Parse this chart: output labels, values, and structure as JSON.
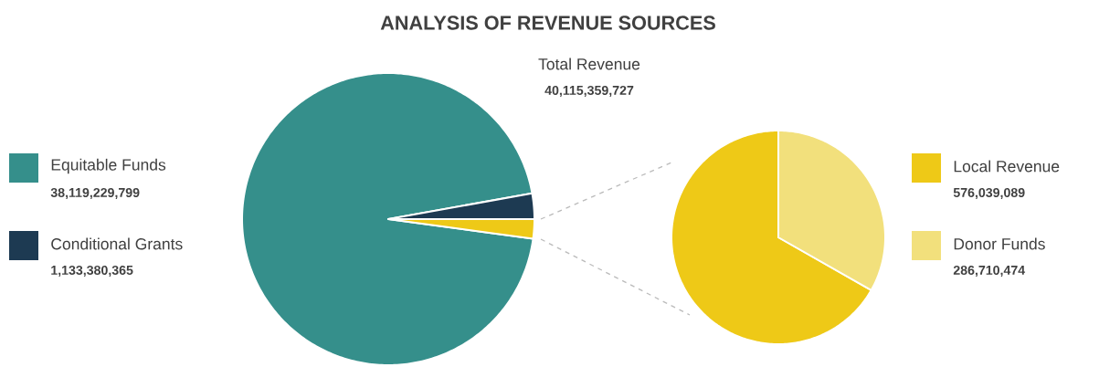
{
  "chart_data": [
    {
      "type": "pie",
      "title": "ANALYSIS OF REVENUE SOURCES",
      "annotations": [
        "Total Revenue",
        "40,115,359,727"
      ],
      "categories": [
        "Equitable Funds",
        "Conditional Grants",
        null
      ],
      "values": [
        38119229799,
        1133380365,
        862749563
      ],
      "colors": [
        "#358f8b",
        "#1d3a52",
        "#eec917"
      ],
      "value_labels": [
        "38,119,229,799",
        "1,133,380,365",
        null
      ],
      "legend": "left"
    },
    {
      "type": "pie",
      "categories": [
        "Local Revenue",
        "Donor Funds"
      ],
      "values": [
        576039089,
        286710474
      ],
      "colors": [
        "#eec917",
        "#f2e07c"
      ],
      "value_labels": [
        "576,039,089",
        "286,710,474"
      ],
      "legend": "right"
    }
  ]
}
